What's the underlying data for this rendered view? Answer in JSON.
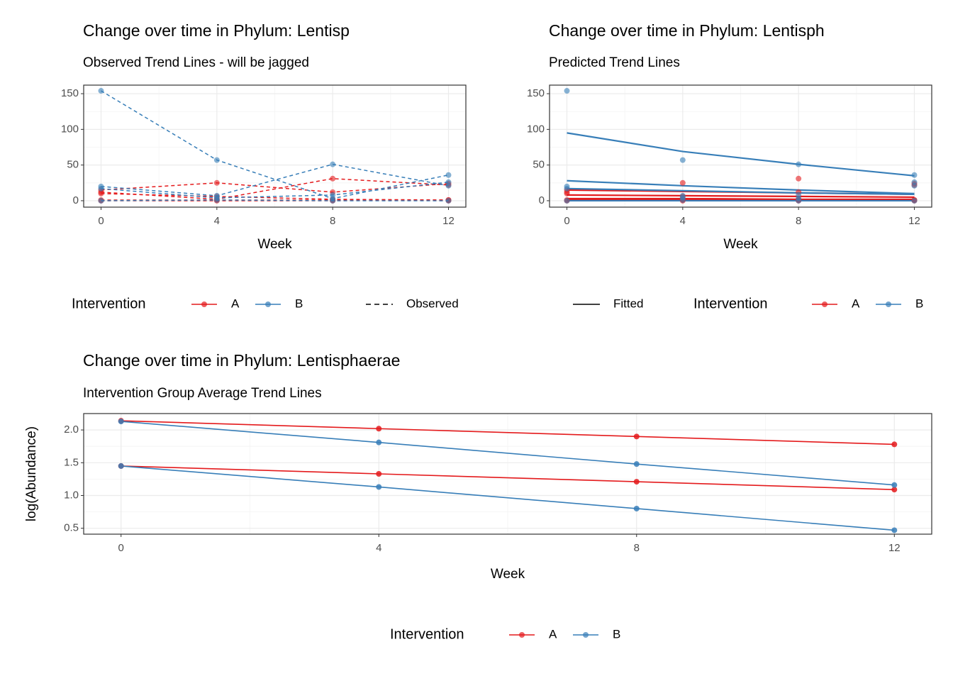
{
  "chart_data": [
    {
      "type": "line",
      "title": "Change over time in Phylum: Lentisp",
      "subtitle": "Observed Trend Lines - will be jagged",
      "x_label": "Week",
      "x": [
        0,
        4,
        8,
        12
      ],
      "xlim": [
        -0.6,
        12.6
      ],
      "xticks": [
        0,
        4,
        8,
        12
      ],
      "ylim": [
        -9,
        162
      ],
      "yticks": [
        0,
        50,
        100,
        150
      ],
      "grid": true,
      "observed_line": "dashed",
      "legend_title": "Intervention",
      "linetype_legend": "Observed",
      "groups": [
        {
          "name": "A",
          "color": "#e41a1c",
          "observed": [
            [
              15,
              25,
              12,
              24
            ],
            [
              12,
              2,
              31,
              22
            ],
            [
              10,
              6,
              2,
              1
            ],
            [
              1,
              1,
              1,
              0
            ],
            [
              0,
              0,
              0,
              1
            ]
          ]
        },
        {
          "name": "B",
          "color": "#377eb8",
          "observed": [
            [
              154,
              57,
              3,
              36
            ],
            [
              20,
              7,
              51,
              21
            ],
            [
              17,
              4,
              8,
              26
            ],
            [
              0,
              1,
              0,
              0
            ]
          ]
        }
      ]
    },
    {
      "type": "line",
      "title": "Change over time in Phylum: Lentisph",
      "subtitle": "Predicted Trend Lines",
      "x_label": "Week",
      "x": [
        0,
        4,
        8,
        12
      ],
      "xlim": [
        -0.6,
        12.6
      ],
      "xticks": [
        0,
        4,
        8,
        12
      ],
      "ylim": [
        -9,
        162
      ],
      "yticks": [
        0,
        50,
        100,
        150
      ],
      "grid": true,
      "legend_title": "Intervention",
      "linetype_legend": "Fitted",
      "groups": [
        {
          "name": "A",
          "color": "#e41a1c",
          "observed": [
            [
              15,
              25,
              12,
              24
            ],
            [
              12,
              2,
              31,
              22
            ],
            [
              10,
              6,
              2,
              1
            ],
            [
              1,
              1,
              1,
              0
            ],
            [
              0,
              0,
              0,
              1
            ]
          ],
          "fitted": [
            [
              15,
              13,
              11,
              9
            ],
            [
              8,
              7,
              6,
              5
            ],
            [
              3,
              3,
              2,
              2
            ],
            [
              1,
              1,
              1,
              1
            ],
            [
              0,
              0,
              0,
              0
            ]
          ]
        },
        {
          "name": "B",
          "color": "#377eb8",
          "observed": [
            [
              154,
              57,
              3,
              36
            ],
            [
              20,
              7,
              51,
              21
            ],
            [
              17,
              4,
              8,
              26
            ],
            [
              0,
              1,
              0,
              0
            ]
          ],
          "fitted": [
            [
              95,
              69,
              51,
              35
            ],
            [
              28,
              21,
              15,
              10
            ],
            [
              17,
              14,
              11,
              9
            ],
            [
              0,
              0,
              0,
              0
            ]
          ]
        }
      ]
    },
    {
      "type": "line",
      "title": "Change over time in Phylum: Lentisphaerae",
      "subtitle": "Intervention Group Average Trend Lines",
      "x_label": "Week",
      "y_label": "log(Abundance)",
      "x": [
        0,
        4,
        8,
        12
      ],
      "xlim": [
        -0.58,
        12.58
      ],
      "xticks": [
        0,
        4,
        8,
        12
      ],
      "ylim": [
        0.41,
        2.25
      ],
      "yticks": [
        0.5,
        {
          "value": 1,
          "label": "1.0"
        },
        1.5,
        {
          "value": 2,
          "label": "2.0"
        }
      ],
      "grid": true,
      "fitted_points": true,
      "legend_title": "Intervention",
      "groups": [
        {
          "name": "A",
          "color": "#e41a1c",
          "fitted": [
            [
              2.14,
              2.02,
              1.9,
              1.78
            ],
            [
              1.45,
              1.33,
              1.21,
              1.09
            ]
          ]
        },
        {
          "name": "B",
          "color": "#377eb8",
          "fitted": [
            [
              2.13,
              1.81,
              1.48,
              1.16
            ],
            [
              1.45,
              1.13,
              0.8,
              0.47
            ]
          ]
        }
      ]
    }
  ]
}
